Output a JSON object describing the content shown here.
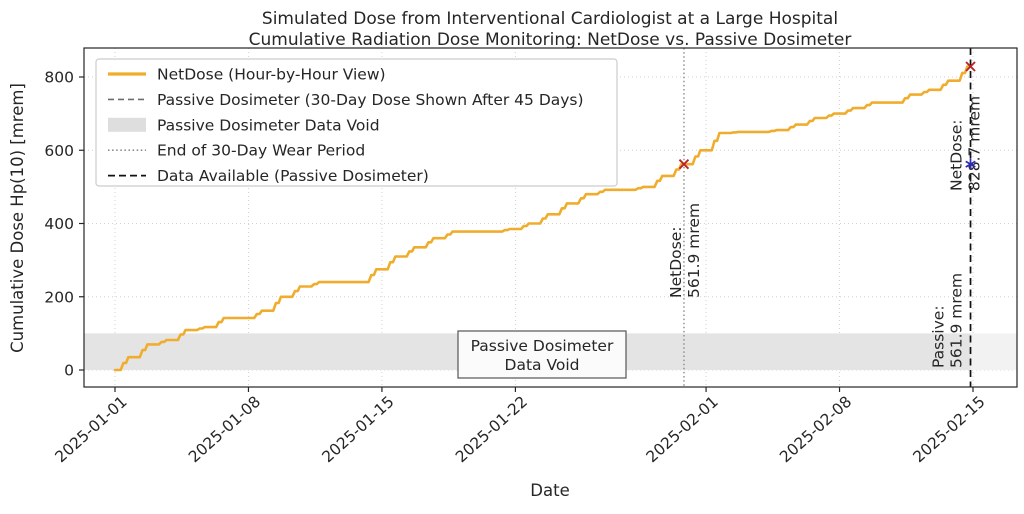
{
  "chart_data": {
    "type": "line",
    "title_lines": [
      "Simulated Dose from Interventional Cardiologist at a Large Hospital",
      "Cumulative Radiation Dose Monitoring: NetDose vs. Passive Dosimeter"
    ],
    "xlabel": "Date",
    "ylabel": "Cumulative Dose Hp(10) [mrem]",
    "x_ticks": [
      {
        "day": 0,
        "label": "2025-01-01"
      },
      {
        "day": 7,
        "label": "2025-01-08"
      },
      {
        "day": 14,
        "label": "2025-01-15"
      },
      {
        "day": 21,
        "label": "2025-01-22"
      },
      {
        "day": 31,
        "label": "2025-02-01"
      },
      {
        "day": 38,
        "label": "2025-02-08"
      },
      {
        "day": 45,
        "label": "2025-02-15"
      }
    ],
    "y_ticks": [
      0,
      200,
      400,
      600,
      800
    ],
    "ylim": [
      -52,
      880
    ],
    "grid": true,
    "legend_position": "upper left",
    "series": [
      {
        "name": "NetDose (Hour-by-Hour View)",
        "style": "step-line",
        "color": "#f0ad2d",
        "start_date": "2025-01-01",
        "end_day": 44.87,
        "daily_cumulative_mrem": [
          35,
          70,
          82,
          109,
          117,
          142,
          142,
          162,
          200,
          228,
          240,
          240,
          240,
          275,
          310,
          335,
          360,
          378,
          378,
          378,
          385,
          400,
          425,
          455,
          480,
          492,
          492,
          500,
          530,
          561.9,
          600,
          647,
          650,
          650,
          655,
          670,
          688,
          700,
          715,
          730,
          730,
          752,
          765,
          790,
          828.7
        ]
      }
    ],
    "band": {
      "label_line1": "Passive Dosimeter",
      "label_line2": "Data Void",
      "ymin": 0,
      "ymax": 100,
      "color": "#e4e4e4",
      "faint_color": "#f2f2f2"
    },
    "vlines": [
      {
        "name": "End of 30-Day Wear Period",
        "day": 29.84,
        "style": "dotted",
        "color": "#8a8a8a"
      },
      {
        "name": "Data Available (Passive Dosimeter)",
        "day": 44.87,
        "style": "dashed",
        "color": "#111111"
      }
    ],
    "annotations": [
      {
        "id": "netdose-at-wear-end",
        "line1": "NetDose:",
        "line2": "561.9 mrem",
        "color": "#bb2424",
        "marker": "x",
        "day": 29.84,
        "value": 561.9
      },
      {
        "id": "netdose-at-data-available",
        "line1": "NetDose:",
        "line2": "828.7 mrem",
        "color": "#bb2424",
        "marker": "x",
        "day": 44.87,
        "value": 828.7
      },
      {
        "id": "passive-at-data-available",
        "line1": "Passive:",
        "line2": "561.9 mrem",
        "color": "#2b2bb5",
        "marker": "star",
        "day": 44.87,
        "value": 561.9
      }
    ],
    "legend": [
      {
        "label": "NetDose (Hour-by-Hour View)",
        "swatch": "line-solid-orange"
      },
      {
        "label": "Passive Dosimeter (30-Day Dose Shown After 45 Days)",
        "swatch": "line-dashed-gray"
      },
      {
        "label": "Passive Dosimeter Data Void",
        "swatch": "patch-gray"
      },
      {
        "label": "End of 30-Day Wear Period",
        "swatch": "line-dotted-gray"
      },
      {
        "label": "Data Available (Passive Dosimeter)",
        "swatch": "line-dashed-black"
      }
    ],
    "colors": {
      "netdose_line": "#f0ad2d",
      "annotation_red": "#bb2424",
      "annotation_blue": "#2b2bb5",
      "band_gray": "#e4e4e4",
      "spine": "#262626",
      "grid": "#d2d2d2"
    }
  }
}
